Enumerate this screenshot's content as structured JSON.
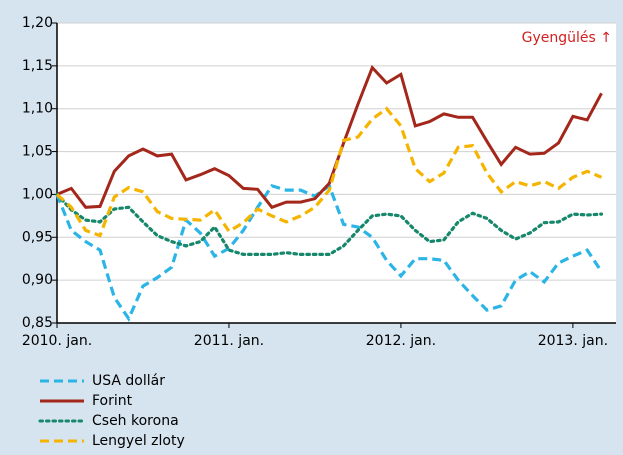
{
  "chart_data": {
    "type": "line",
    "annotation": "Gyengülés ↑",
    "categories": [
      "2010. jan.",
      null,
      null,
      null,
      null,
      null,
      null,
      null,
      null,
      null,
      null,
      null,
      "2011. jan.",
      null,
      null,
      null,
      null,
      null,
      null,
      null,
      null,
      null,
      null,
      null,
      "2012. jan.",
      null,
      null,
      null,
      null,
      null,
      null,
      null,
      null,
      null,
      null,
      null,
      "2013. jan.",
      null,
      null
    ],
    "ylim": [
      0.85,
      1.2
    ],
    "yticks": [
      {
        "value": 0.85,
        "label": "0,85"
      },
      {
        "value": 0.9,
        "label": "0,90"
      },
      {
        "value": 0.95,
        "label": "0,95"
      },
      {
        "value": 1.0,
        "label": "1,00"
      },
      {
        "value": 1.05,
        "label": "1,05"
      },
      {
        "value": 1.1,
        "label": "1,10"
      },
      {
        "value": 1.15,
        "label": "1,15"
      },
      {
        "value": 1.2,
        "label": "1,20"
      }
    ],
    "grid": true,
    "series": [
      {
        "name": "USA dollár",
        "color": "#2bb5e6",
        "style": "dashed",
        "values": [
          1.0,
          0.958,
          0.945,
          0.935,
          0.88,
          0.855,
          0.893,
          0.903,
          0.915,
          0.97,
          0.955,
          0.928,
          0.937,
          0.958,
          0.985,
          1.01,
          1.005,
          1.005,
          0.998,
          1.01,
          0.965,
          0.962,
          0.95,
          0.923,
          0.905,
          0.925,
          0.925,
          0.923,
          0.9,
          0.882,
          0.865,
          0.87,
          0.9,
          0.91,
          0.898,
          0.92,
          0.928,
          0.935,
          0.91
        ]
      },
      {
        "name": "Forint",
        "color": "#a3271a",
        "style": "solid",
        "values": [
          1.0,
          1.007,
          0.985,
          0.986,
          1.027,
          1.045,
          1.053,
          1.045,
          1.047,
          1.017,
          1.023,
          1.03,
          1.022,
          1.007,
          1.006,
          0.985,
          0.991,
          0.991,
          0.995,
          1.013,
          1.06,
          1.105,
          1.148,
          1.13,
          1.14,
          1.08,
          1.085,
          1.094,
          1.09,
          1.09,
          1.062,
          1.035,
          1.055,
          1.047,
          1.048,
          1.06,
          1.091,
          1.087,
          1.118
        ]
      },
      {
        "name": "Cseh korona",
        "color": "#16876b",
        "style": "dotted",
        "values": [
          1.0,
          0.982,
          0.97,
          0.968,
          0.983,
          0.985,
          0.968,
          0.952,
          0.945,
          0.94,
          0.945,
          0.962,
          0.935,
          0.93,
          0.93,
          0.93,
          0.932,
          0.93,
          0.93,
          0.93,
          0.94,
          0.958,
          0.975,
          0.977,
          0.975,
          0.958,
          0.945,
          0.947,
          0.968,
          0.978,
          0.972,
          0.958,
          0.948,
          0.955,
          0.967,
          0.968,
          0.977,
          0.976,
          0.977
        ]
      },
      {
        "name": "Lengyel zloty",
        "color": "#f5b400",
        "style": "dashed",
        "values": [
          1.0,
          0.985,
          0.958,
          0.952,
          0.997,
          1.008,
          1.003,
          0.98,
          0.972,
          0.971,
          0.97,
          0.982,
          0.957,
          0.967,
          0.983,
          0.975,
          0.968,
          0.975,
          0.985,
          1.005,
          1.063,
          1.067,
          1.088,
          1.1,
          1.08,
          1.03,
          1.015,
          1.025,
          1.055,
          1.057,
          1.025,
          1.003,
          1.015,
          1.01,
          1.015,
          1.007,
          1.02,
          1.027,
          1.02
        ]
      }
    ]
  }
}
